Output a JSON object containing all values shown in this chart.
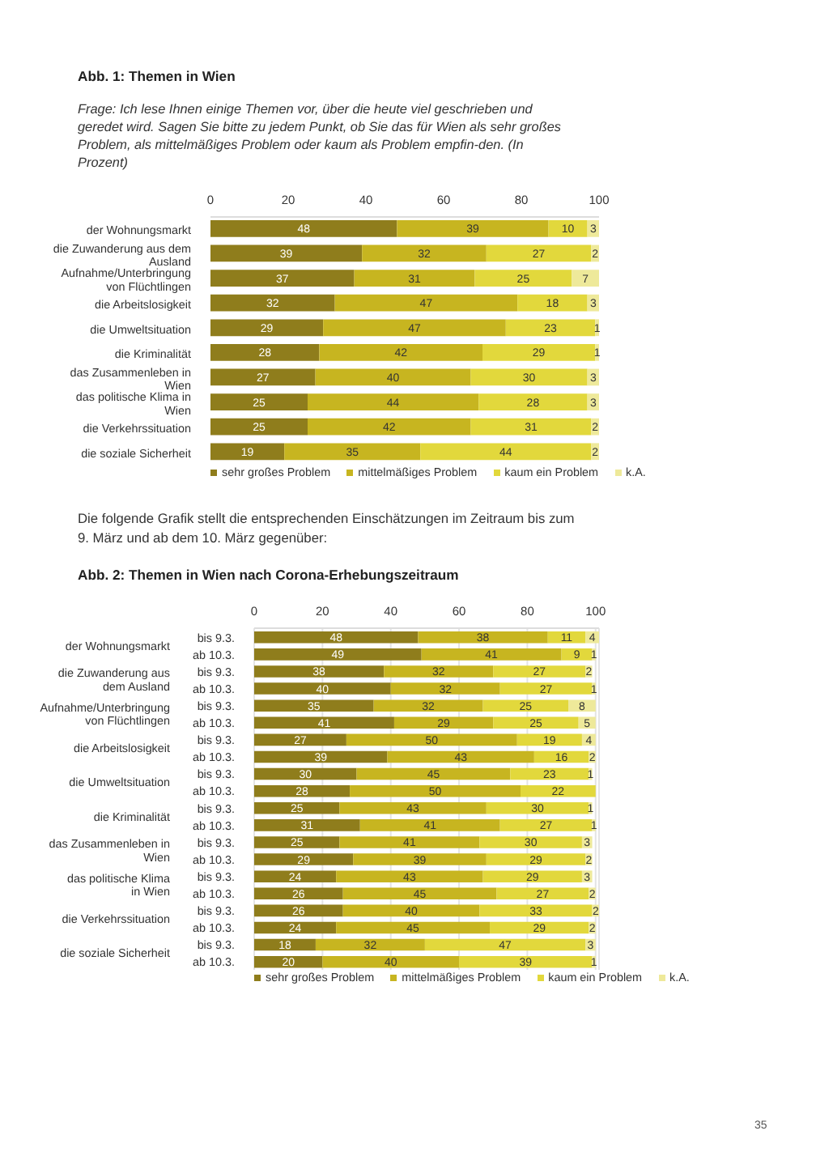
{
  "chart_data": [
    {
      "type": "bar",
      "title": "Abb. 1: Themen in Wien",
      "subtitle": "Frage: Ich lese Ihnen einige Themen vor, über die heute viel geschrieben und geredet wird. Sagen Sie bitte zu jedem Punkt, ob Sie das für Wien als sehr großes Problem, als mittelmäßiges Problem oder kaum als Problem empfin-den. (In Prozent)",
      "orientation": "horizontal",
      "stacked": true,
      "data_labels": true,
      "legend": "bottom",
      "xlim": [
        0,
        100
      ],
      "xticks": [
        0,
        20,
        40,
        60,
        80,
        100
      ],
      "categories": [
        "der Wohnungsmarkt",
        "die Zuwanderung aus dem Ausland",
        "Aufnahme/Unterbringung von Flüchtlingen",
        "die Arbeitslosigkeit",
        "die Umweltsituation",
        "die Kriminalität",
        "das Zusammenleben in Wien",
        "das politische Klima in Wien",
        "die Verkehrssituation",
        "die soziale Sicherheit"
      ],
      "series": [
        {
          "name": "sehr großes Problem",
          "color": "#8f7d1c",
          "values": [
            48,
            39,
            37,
            32,
            29,
            28,
            27,
            25,
            25,
            19
          ]
        },
        {
          "name": "mittelmäßiges Problem",
          "color": "#c7b520",
          "values": [
            39,
            32,
            31,
            47,
            47,
            42,
            40,
            44,
            42,
            35
          ]
        },
        {
          "name": "kaum ein Problem",
          "color": "#e2d83c",
          "values": [
            10,
            27,
            25,
            18,
            23,
            29,
            30,
            28,
            31,
            44
          ]
        },
        {
          "name": "k.A.",
          "color": "#eee99a",
          "values": [
            3,
            2,
            7,
            3,
            1,
            1,
            3,
            3,
            2,
            2
          ]
        }
      ],
      "annotations": [
        "Die folgende Grafik stellt die entsprechenden Einschätzungen im Zeitraum bis zum 9. März und ab dem 10. März gegenüber:"
      ]
    },
    {
      "type": "bar",
      "title": "Abb. 2: Themen in Wien nach Corona-Erhebungszeitraum",
      "orientation": "horizontal",
      "stacked": true,
      "data_labels": true,
      "legend": "bottom",
      "grid": "x",
      "xlim": [
        0,
        101
      ],
      "xticks": [
        0,
        20,
        40,
        60,
        80,
        100
      ],
      "categories": [
        "bis 9.3.",
        "ab 10.3.",
        "bis 9.3.",
        "ab 10.3.",
        "bis 9.3.",
        "ab 10.3.",
        "bis 9.3.",
        "ab 10.3.",
        "bis 9.3.",
        "ab 10.3.",
        "bis 9.3.",
        "ab 10.3.",
        "bis 9.3.",
        "ab 10.3.",
        "bis 9.3.",
        "ab 10.3.",
        "bis 9.3.",
        "ab 10.3.",
        "bis 9.3.",
        "ab 10.3."
      ],
      "series": [
        {
          "name": "sehr großes Problem",
          "color": "#8f7d1c",
          "values": [
            48,
            49,
            38,
            40,
            35,
            41,
            27,
            39,
            30,
            28,
            25,
            31,
            25,
            29,
            24,
            26,
            26,
            24,
            18,
            20
          ]
        },
        {
          "name": "mittelmäßiges Problem",
          "color": "#c7b520",
          "values": [
            38,
            41,
            32,
            32,
            32,
            29,
            50,
            43,
            45,
            50,
            43,
            41,
            41,
            39,
            43,
            45,
            40,
            45,
            32,
            40
          ]
        },
        {
          "name": "kaum ein Problem",
          "color": "#e2d83c",
          "values": [
            11,
            9,
            27,
            27,
            25,
            25,
            19,
            16,
            23,
            22,
            30,
            27,
            30,
            29,
            29,
            27,
            33,
            29,
            47,
            39
          ]
        },
        {
          "name": "k.A.",
          "color": "#eee99a",
          "values": [
            4,
            1,
            2,
            1,
            8,
            5,
            4,
            2,
            1,
            null,
            1,
            1,
            3,
            2,
            3,
            2,
            2,
            2,
            3,
            1
          ]
        }
      ],
      "annotations": [
        "der Wohnungsmarkt",
        "die Zuwanderung aus dem Ausland",
        "Aufnahme/Unterbringung von Flüchtlingen",
        "die Arbeitslosigkeit",
        "die Umweltsituation",
        "die Kriminalität",
        "das Zusammenleben in Wien",
        "das politische Klima in Wien",
        "die Verkehrssituation",
        "die soziale Sicherheit",
        "35"
      ]
    }
  ]
}
